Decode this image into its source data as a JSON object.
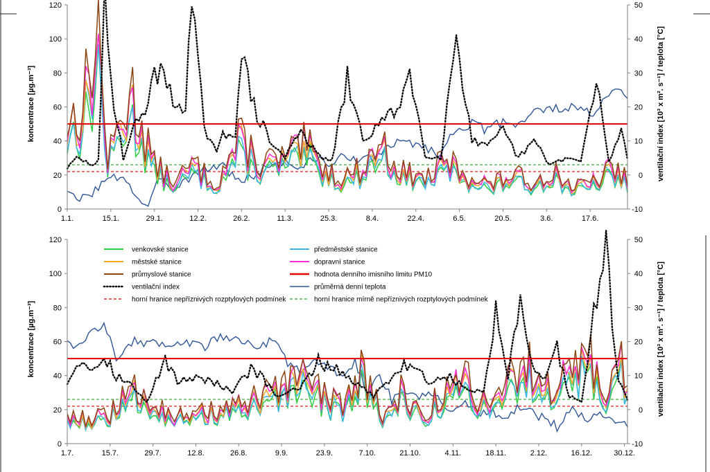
{
  "chart_data": [
    {
      "type": "line",
      "period": "January - June",
      "categories": [
        "1.1.",
        "15.1.",
        "29.1.",
        "12.2.",
        "26.2.",
        "11.3.",
        "25.3.",
        "8.4.",
        "22.4.",
        "6.5.",
        "20.5.",
        "3.6.",
        "17.6."
      ],
      "ylabel": "koncentrace [µg.m⁻³]",
      "y2label": "ventilační index [10³ x m². s⁻¹] / teplota [°C]",
      "ylim": [
        0,
        120
      ],
      "y2lim": [
        -10,
        50
      ],
      "yticks": [
        "0",
        "20",
        "40",
        "60",
        "80",
        "100",
        "120"
      ],
      "y2ticks": [
        "-10",
        "0",
        "10",
        "20",
        "30",
        "40",
        "50"
      ],
      "limit_value": 50,
      "unfavorable_limit": 22,
      "mildly_unfavorable_limit": 26,
      "days": 181,
      "pm_anchors": [
        [
          0,
          48
        ],
        [
          5,
          55
        ],
        [
          10,
          92
        ],
        [
          13,
          26
        ],
        [
          20,
          62
        ],
        [
          28,
          24
        ],
        [
          35,
          13
        ],
        [
          40,
          24
        ],
        [
          48,
          14
        ],
        [
          55,
          36
        ],
        [
          62,
          24
        ],
        [
          70,
          27
        ],
        [
          77,
          33
        ],
        [
          82,
          23
        ],
        [
          88,
          17
        ],
        [
          95,
          22
        ],
        [
          100,
          36
        ],
        [
          108,
          19
        ],
        [
          116,
          17
        ],
        [
          122,
          25
        ],
        [
          128,
          19
        ],
        [
          136,
          13
        ],
        [
          142,
          18
        ],
        [
          150,
          15
        ],
        [
          156,
          21
        ],
        [
          162,
          12
        ],
        [
          168,
          13
        ],
        [
          174,
          21
        ],
        [
          180,
          17
        ]
      ],
      "vent_anchors": [
        [
          0,
          2
        ],
        [
          3,
          5
        ],
        [
          8,
          3
        ],
        [
          10,
          4
        ],
        [
          12,
          50
        ],
        [
          14,
          28
        ],
        [
          18,
          5
        ],
        [
          22,
          15
        ],
        [
          26,
          22
        ],
        [
          30,
          34
        ],
        [
          34,
          20
        ],
        [
          38,
          22
        ],
        [
          40,
          50
        ],
        [
          44,
          14
        ],
        [
          48,
          6
        ],
        [
          50,
          12
        ],
        [
          54,
          13
        ],
        [
          56,
          35
        ],
        [
          60,
          20
        ],
        [
          65,
          10
        ],
        [
          70,
          5
        ],
        [
          75,
          14
        ],
        [
          80,
          6
        ],
        [
          85,
          4
        ],
        [
          90,
          28
        ],
        [
          95,
          10
        ],
        [
          100,
          15
        ],
        [
          105,
          18
        ],
        [
          110,
          30
        ],
        [
          115,
          6
        ],
        [
          120,
          5
        ],
        [
          125,
          42
        ],
        [
          130,
          10
        ],
        [
          135,
          8
        ],
        [
          140,
          13
        ],
        [
          145,
          5
        ],
        [
          150,
          10
        ],
        [
          155,
          3
        ],
        [
          160,
          5
        ],
        [
          165,
          4
        ],
        [
          170,
          27
        ],
        [
          174,
          4
        ],
        [
          178,
          13
        ],
        [
          180,
          5
        ]
      ],
      "temp_anchors": [
        [
          0,
          -4
        ],
        [
          3,
          -8
        ],
        [
          8,
          -5
        ],
        [
          12,
          -2
        ],
        [
          18,
          0
        ],
        [
          22,
          -6
        ],
        [
          26,
          -10
        ],
        [
          30,
          0
        ],
        [
          34,
          -4
        ],
        [
          40,
          0
        ],
        [
          45,
          2
        ],
        [
          50,
          3
        ],
        [
          55,
          -2
        ],
        [
          60,
          0
        ],
        [
          65,
          3
        ],
        [
          70,
          4
        ],
        [
          75,
          2
        ],
        [
          80,
          5
        ],
        [
          85,
          3
        ],
        [
          90,
          6
        ],
        [
          95,
          4
        ],
        [
          100,
          6
        ],
        [
          105,
          9
        ],
        [
          110,
          10
        ],
        [
          115,
          8
        ],
        [
          120,
          6
        ],
        [
          125,
          14
        ],
        [
          130,
          15
        ],
        [
          135,
          13
        ],
        [
          140,
          16
        ],
        [
          145,
          15
        ],
        [
          150,
          19
        ],
        [
          155,
          19
        ],
        [
          160,
          20
        ],
        [
          165,
          19
        ],
        [
          170,
          18
        ],
        [
          175,
          25
        ],
        [
          178,
          24
        ],
        [
          180,
          21
        ]
      ]
    },
    {
      "type": "line",
      "period": "July - December",
      "categories": [
        "1.7.",
        "15.7.",
        "29.7.",
        "12.8.",
        "26.8.",
        "9.9.",
        "23.9.",
        "7.10.",
        "21.10.",
        "4.11.",
        "18.11.",
        "2.12.",
        "16.12.",
        "30.12."
      ],
      "ylabel": "koncentrace [µg.m⁻³]",
      "y2label": "ventilační index [10³ x m². s⁻¹] / teplota [°C]",
      "ylim": [
        0,
        120
      ],
      "y2lim": [
        -10,
        50
      ],
      "yticks": [
        "0",
        "20",
        "40",
        "60",
        "80",
        "100",
        "120"
      ],
      "y2ticks": [
        "-10",
        "0",
        "10",
        "20",
        "30",
        "40",
        "50"
      ],
      "limit_value": 50,
      "unfavorable_limit": 22,
      "mildly_unfavorable_limit": 26,
      "days": 184,
      "pm_anchors": [
        [
          0,
          15
        ],
        [
          8,
          13
        ],
        [
          16,
          18
        ],
        [
          22,
          28
        ],
        [
          28,
          25
        ],
        [
          34,
          15
        ],
        [
          40,
          14
        ],
        [
          48,
          18
        ],
        [
          56,
          20
        ],
        [
          62,
          22
        ],
        [
          70,
          28
        ],
        [
          76,
          35
        ],
        [
          84,
          26
        ],
        [
          90,
          20
        ],
        [
          96,
          40
        ],
        [
          104,
          14
        ],
        [
          110,
          28
        ],
        [
          116,
          15
        ],
        [
          122,
          25
        ],
        [
          130,
          34
        ],
        [
          136,
          22
        ],
        [
          142,
          28
        ],
        [
          148,
          42
        ],
        [
          154,
          36
        ],
        [
          160,
          28
        ],
        [
          166,
          48
        ],
        [
          172,
          38
        ],
        [
          176,
          28
        ],
        [
          180,
          58
        ],
        [
          183,
          25
        ]
      ],
      "vent_anchors": [
        [
          0,
          8
        ],
        [
          4,
          15
        ],
        [
          8,
          12
        ],
        [
          12,
          16
        ],
        [
          16,
          10
        ],
        [
          20,
          8
        ],
        [
          26,
          2
        ],
        [
          32,
          15
        ],
        [
          36,
          8
        ],
        [
          42,
          10
        ],
        [
          48,
          8
        ],
        [
          54,
          5
        ],
        [
          60,
          12
        ],
        [
          64,
          9
        ],
        [
          68,
          4
        ],
        [
          76,
          6
        ],
        [
          82,
          14
        ],
        [
          88,
          12
        ],
        [
          94,
          8
        ],
        [
          100,
          4
        ],
        [
          106,
          10
        ],
        [
          112,
          14
        ],
        [
          118,
          8
        ],
        [
          124,
          10
        ],
        [
          130,
          6
        ],
        [
          136,
          5
        ],
        [
          140,
          28
        ],
        [
          144,
          10
        ],
        [
          148,
          30
        ],
        [
          152,
          12
        ],
        [
          156,
          8
        ],
        [
          160,
          18
        ],
        [
          164,
          4
        ],
        [
          168,
          2
        ],
        [
          172,
          28
        ],
        [
          176,
          48
        ],
        [
          180,
          8
        ],
        [
          183,
          3
        ]
      ],
      "temp_anchors": [
        [
          0,
          21
        ],
        [
          3,
          18
        ],
        [
          8,
          22
        ],
        [
          12,
          26
        ],
        [
          16,
          15
        ],
        [
          20,
          20
        ],
        [
          26,
          20
        ],
        [
          32,
          19
        ],
        [
          38,
          20
        ],
        [
          44,
          18
        ],
        [
          50,
          21
        ],
        [
          56,
          21
        ],
        [
          62,
          19
        ],
        [
          68,
          20
        ],
        [
          72,
          14
        ],
        [
          76,
          12
        ],
        [
          80,
          14
        ],
        [
          86,
          12
        ],
        [
          90,
          10
        ],
        [
          94,
          14
        ],
        [
          98,
          6
        ],
        [
          102,
          10
        ],
        [
          106,
          3
        ],
        [
          110,
          6
        ],
        [
          114,
          4
        ],
        [
          118,
          5
        ],
        [
          122,
          2
        ],
        [
          126,
          0
        ],
        [
          132,
          2
        ],
        [
          134,
          -2
        ],
        [
          138,
          0
        ],
        [
          142,
          -4
        ],
        [
          146,
          0
        ],
        [
          150,
          0
        ],
        [
          154,
          -2
        ],
        [
          160,
          -5
        ],
        [
          164,
          0
        ],
        [
          170,
          -3
        ],
        [
          174,
          0
        ],
        [
          178,
          -3
        ],
        [
          183,
          -4
        ]
      ]
    }
  ],
  "legend": {
    "venkovske": {
      "label": "venkovské stanice",
      "color": "#2ecc40"
    },
    "prumestske": {
      "label": "předměstské stanice",
      "color": "#3ab5e6"
    },
    "mestske": {
      "label": "městské stanice",
      "color": "#f5a623"
    },
    "dopravni": {
      "label": "dopravní stanice",
      "color": "#ff2bd6"
    },
    "prumyslove": {
      "label": "průmyslové stanice",
      "color": "#8b4513"
    },
    "limit": {
      "label": "hodnota denního imisního limitu PM10",
      "color": "#e00000"
    },
    "ventilacni": {
      "label": "ventilační index",
      "color": "#000000"
    },
    "teplota": {
      "label": "průměrná denní teplota",
      "color": "#2f5597"
    },
    "nepriznive": {
      "label": "horní hranice nepříznivých rozptylových podmínek",
      "color": "#e00000"
    },
    "mirne": {
      "label": "horní hranice mírně nepříznivých rozptylových podmínek",
      "color": "#2ca02c"
    }
  }
}
